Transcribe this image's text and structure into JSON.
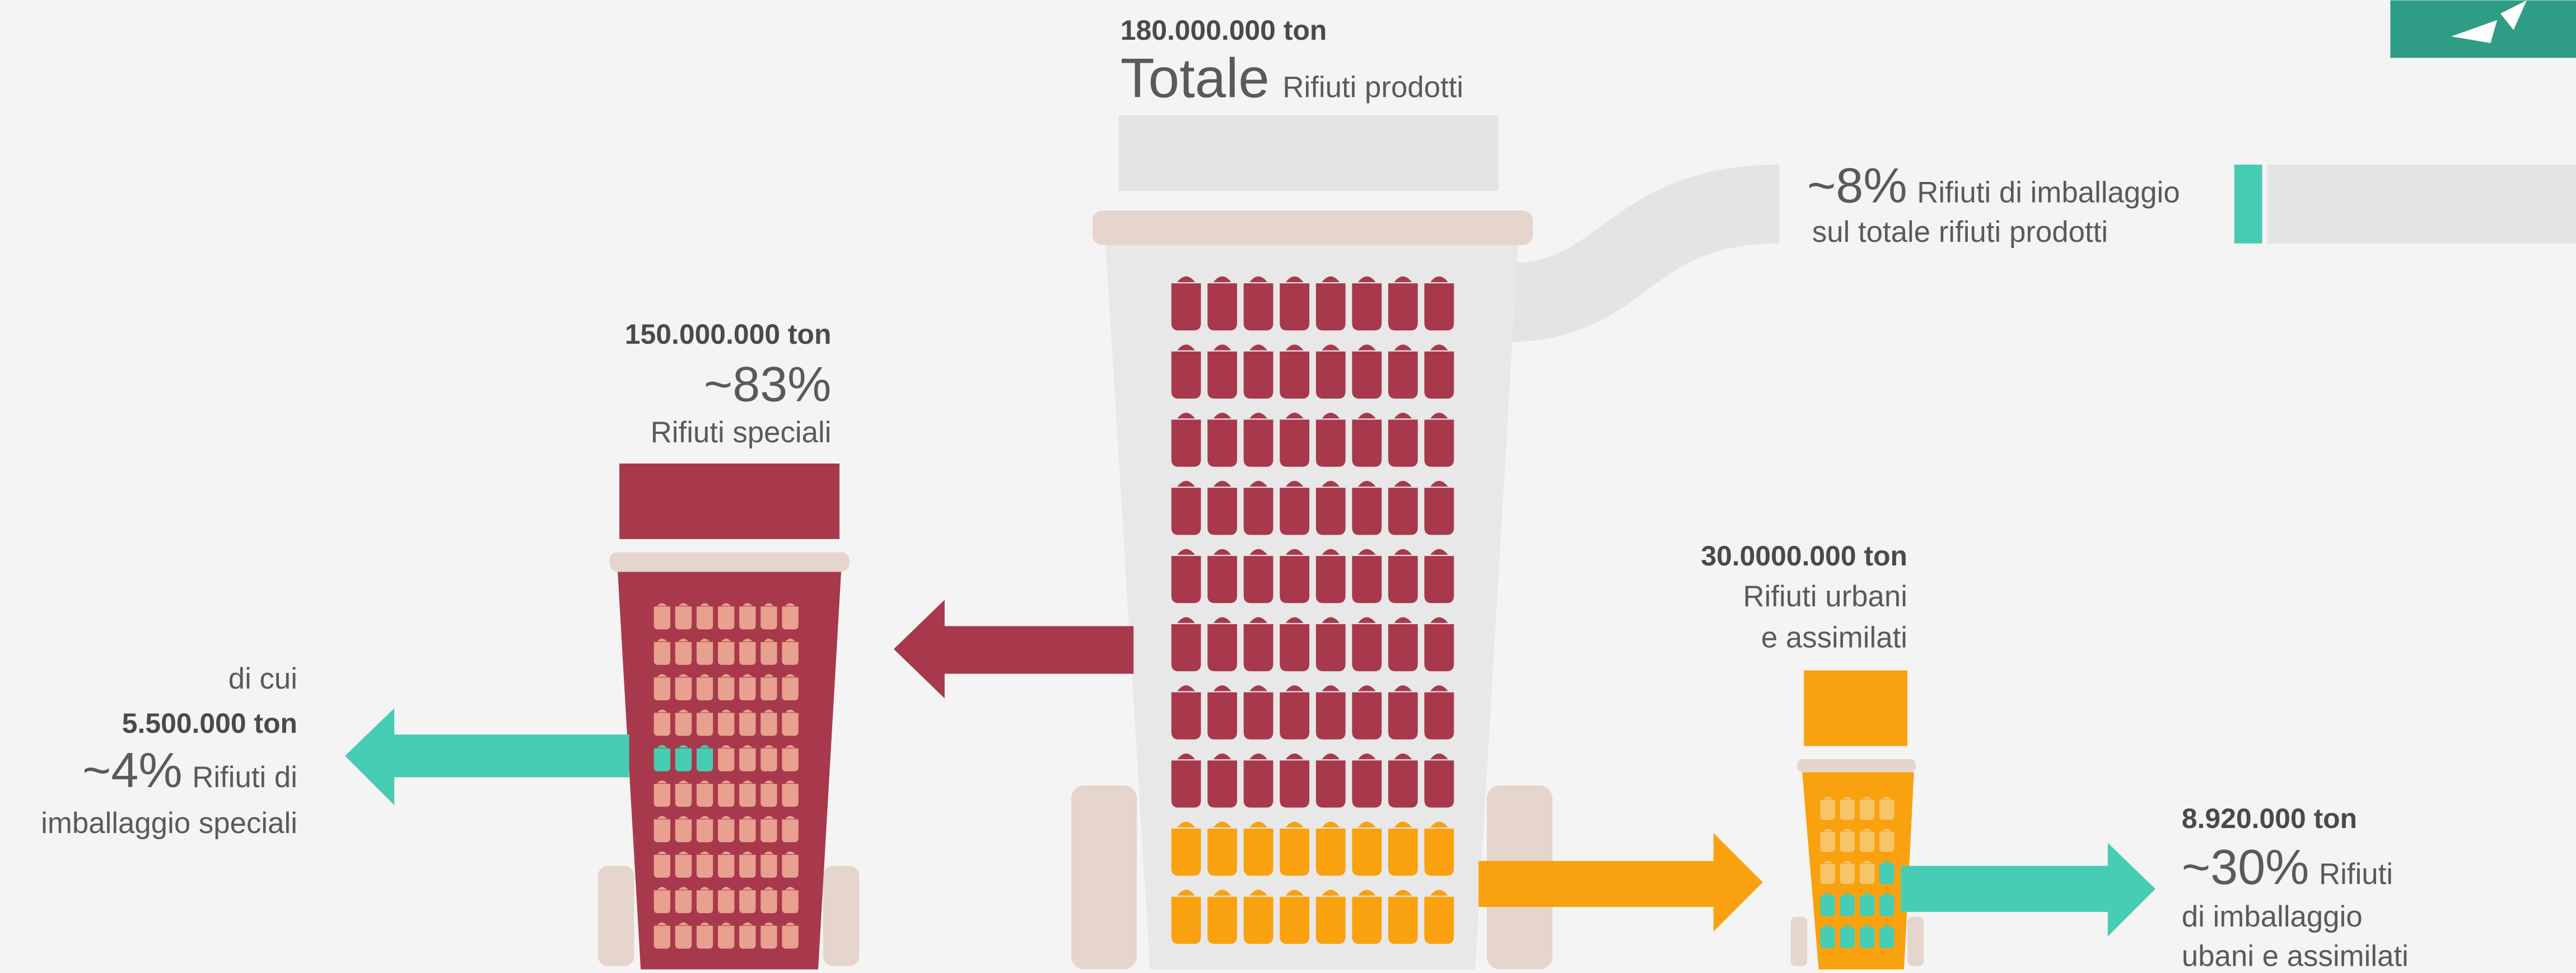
{
  "total": {
    "amount": "180.000.000 ton",
    "title": "Totale",
    "subtitle": "Rifiuti prodotti"
  },
  "packaging_share": {
    "percent": "~8%",
    "label": "Rifiuti di imballaggio",
    "label2": "sul totale rifiuti prodotti"
  },
  "special": {
    "amount": "150.000.000 ton",
    "percent": "~83%",
    "label": "Rifiuti speciali"
  },
  "special_packaging": {
    "intro": "di cui",
    "amount": "5.500.000 ton",
    "percent": "~4%",
    "label": "Rifiuti di",
    "label2": "imballaggio speciali"
  },
  "urban": {
    "amount": "30.0000.000 ton",
    "label": "Rifiuti urbani",
    "label2": "e assimilati"
  },
  "urban_packaging": {
    "amount": "8.920.000 ton",
    "percent": "~30%",
    "label": "Rifiuti",
    "label2": "di imballaggio",
    "label3": "ubani e assimilati"
  }
}
